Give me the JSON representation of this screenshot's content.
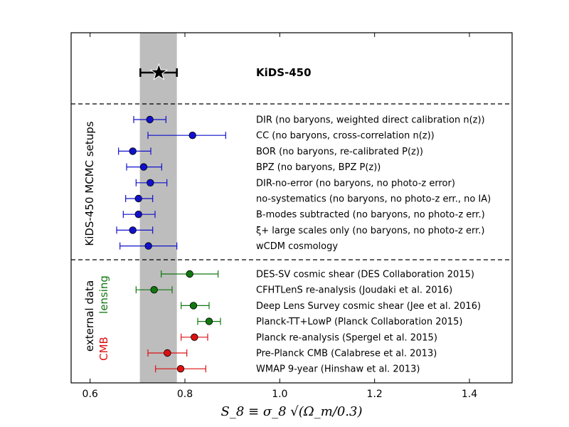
{
  "chart_data": {
    "type": "scatter",
    "subtype": "error-bar forest plot",
    "xlabel": "S_8 ≡ σ_8 √(Ω_m/0.3)",
    "xlim": [
      0.56,
      1.49
    ],
    "xticks": [
      "0.6",
      "0.8",
      "1.0",
      "1.2",
      "1.4"
    ],
    "xtick_values": [
      0.6,
      0.8,
      1.0,
      1.2,
      1.4
    ],
    "colors": {
      "blue": "#1111cc",
      "green": "#117711",
      "red": "#dd1111",
      "black": "#000000",
      "band": "#bdbdbd"
    },
    "reference": {
      "label": "KiDS-450",
      "value": 0.745,
      "err_low": 0.039,
      "err_high": 0.038,
      "band": [
        0.705,
        0.783
      ]
    },
    "groups": [
      {
        "label": "KiDS-450 MCMC setups",
        "color": "black"
      },
      {
        "label": "lensing",
        "color": "green"
      },
      {
        "label": "external data",
        "color": "black"
      },
      {
        "label": "CMB",
        "color": "red"
      }
    ],
    "series": [
      {
        "name": "KiDS-450 MCMC setups",
        "color": "blue",
        "points": [
          {
            "label": "DIR (no baryons, weighted direct calibration n(z))",
            "value": 0.726,
            "err_low": 0.034,
            "err_high": 0.034
          },
          {
            "label": "CC (no baryons, cross-correlation n(z))",
            "value": 0.816,
            "err_low": 0.094,
            "err_high": 0.07
          },
          {
            "label": "BOR (no baryons, re-calibrated P(z))",
            "value": 0.69,
            "err_low": 0.03,
            "err_high": 0.038
          },
          {
            "label": "BPZ (no baryons, BPZ P(z))",
            "value": 0.713,
            "err_low": 0.036,
            "err_high": 0.038
          },
          {
            "label": "DIR-no-error (no baryons, no photo-z error)",
            "value": 0.727,
            "err_low": 0.03,
            "err_high": 0.035
          },
          {
            "label": "no-systematics (no baryons, no photo-z err., no IA)",
            "value": 0.702,
            "err_low": 0.027,
            "err_high": 0.03
          },
          {
            "label": "B-modes subtracted (no baryons, no photo-z err.)",
            "value": 0.702,
            "err_low": 0.032,
            "err_high": 0.035
          },
          {
            "label": "ξ+ large scales only (no baryons, no photo-z err.)",
            "value": 0.69,
            "err_low": 0.034,
            "err_high": 0.042
          },
          {
            "label": "wCDM cosmology",
            "value": 0.723,
            "err_low": 0.06,
            "err_high": 0.06
          }
        ]
      },
      {
        "name": "lensing",
        "color": "green",
        "points": [
          {
            "label": "DES-SV cosmic shear (DES Collaboration 2015)",
            "value": 0.81,
            "err_low": 0.06,
            "err_high": 0.06
          },
          {
            "label": "CFHTLenS re-analysis (Joudaki et al. 2016)",
            "value": 0.735,
            "err_low": 0.038,
            "err_high": 0.038
          },
          {
            "label": "Deep Lens Survey cosmic shear (Jee et al. 2016)",
            "value": 0.818,
            "err_low": 0.026,
            "err_high": 0.033
          },
          {
            "label": "Planck-TT+LowP (Planck Collaboration 2015)",
            "value": 0.851,
            "err_low": 0.024,
            "err_high": 0.024
          }
        ]
      },
      {
        "name": "CMB",
        "color": "red",
        "points": [
          {
            "label": "Planck re-analysis (Spergel et al. 2015)",
            "value": 0.82,
            "err_low": 0.028,
            "err_high": 0.028
          },
          {
            "label": "Pre-Planck CMB (Calabrese et al. 2013)",
            "value": 0.763,
            "err_low": 0.041,
            "err_high": 0.041
          },
          {
            "label": "WMAP 9-year (Hinshaw et al. 2013)",
            "value": 0.791,
            "err_low": 0.053,
            "err_high": 0.053
          }
        ]
      }
    ]
  }
}
